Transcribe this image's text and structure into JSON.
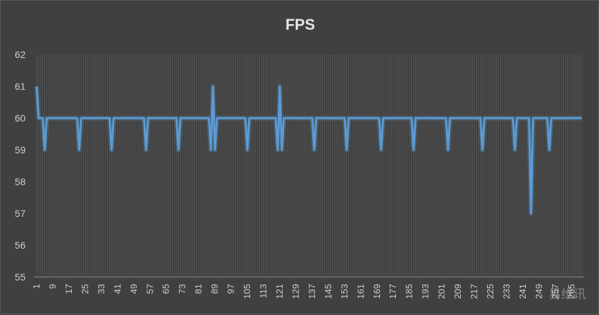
{
  "chart_data": {
    "type": "line",
    "title": "FPS",
    "xlabel": "",
    "ylabel": "",
    "ylim": [
      55,
      62
    ],
    "yticks": [
      55,
      56,
      57,
      58,
      59,
      60,
      61,
      62
    ],
    "x_start": 1,
    "x_end": 270,
    "xtick_step": 8,
    "xtick_labels": [
      "1",
      "9",
      "17",
      "25",
      "33",
      "41",
      "49",
      "57",
      "65",
      "73",
      "81",
      "89",
      "97",
      "105",
      "113",
      "121",
      "129",
      "137",
      "145",
      "153",
      "161",
      "169",
      "177",
      "185",
      "193",
      "201",
      "209",
      "217",
      "225",
      "233",
      "241",
      "249",
      "257",
      "265"
    ],
    "grid": "vertical",
    "baseline": 60,
    "events": [
      {
        "x": 1,
        "value": 61
      },
      {
        "x": 5,
        "value": 59
      },
      {
        "x": 22,
        "value": 59
      },
      {
        "x": 38,
        "value": 59
      },
      {
        "x": 55,
        "value": 59
      },
      {
        "x": 71,
        "value": 59
      },
      {
        "x": 87,
        "value": 59
      },
      {
        "x": 88,
        "value": 61
      },
      {
        "x": 89,
        "value": 59
      },
      {
        "x": 105,
        "value": 59
      },
      {
        "x": 120,
        "value": 59
      },
      {
        "x": 121,
        "value": 61
      },
      {
        "x": 122,
        "value": 59
      },
      {
        "x": 138,
        "value": 59
      },
      {
        "x": 154,
        "value": 59
      },
      {
        "x": 171,
        "value": 59
      },
      {
        "x": 187,
        "value": 59
      },
      {
        "x": 204,
        "value": 59
      },
      {
        "x": 221,
        "value": 59
      },
      {
        "x": 237,
        "value": 59
      },
      {
        "x": 245,
        "value": 57
      },
      {
        "x": 254,
        "value": 59
      }
    ],
    "line_color": "#5b9bd5",
    "background": "#404040"
  },
  "watermark": "易维讯"
}
